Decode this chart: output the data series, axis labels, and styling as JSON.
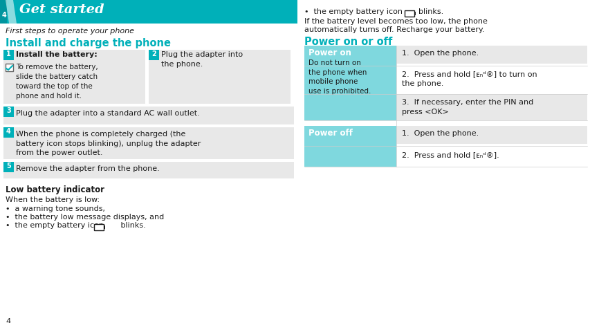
{
  "bg_color": "#ffffff",
  "teal_dark": "#00b0b9",
  "teal_light": "#7fd8de",
  "gray_light": "#e8e8e8",
  "gray_mid": "#cccccc",
  "black": "#1a1a1a",
  "white": "#ffffff",
  "title_text": "Get started",
  "subtitle_text": "First steps to operate your phone",
  "section1_title": "Install and charge the phone",
  "section2_title": "Power on or off",
  "low_battery_title": "Low battery indicator",
  "low_battery_body": "When the battery is low:",
  "bullet1": "a warning tone sounds,",
  "bullet2": "the battery low message displays, and",
  "bullet3_pre": "the empty battery icon",
  "bullet3_post": "blinks.",
  "para1_line1": "If the battery level becomes too low, the phone",
  "para1_line2": "automatically turns off. Recharge your battery.",
  "step1_title": "Install the battery:",
  "step1_body": "To remove the battery,\nslide the battery catch\ntoward the top of the\nphone and hold it.",
  "step2_body": "Plug the adapter into\nthe phone.",
  "step3_body": "Plug the adapter into a standard AC wall outlet.",
  "step4_body": "When the phone is completely charged (the\nbattery icon stops blinking), unplug the adapter\nfrom the power outlet.",
  "step5_body": "Remove the adapter from the phone.",
  "power_on_label": "Power on",
  "power_on_note": "Do not turn on\nthe phone when\nmobile phone\nuse is prohibited.",
  "power_on_step1": "Open the phone.",
  "power_on_step2": "Press and hold [ᴇₙᵈ®] to turn on\nthe phone.",
  "power_on_step3": "If necessary, enter the PIN and\npress <OK>",
  "power_off_label": "Power off",
  "power_off_step1": "Open the phone.",
  "power_off_step2": "Press and hold [ᴇₙᵈ®].",
  "page_num": "4"
}
